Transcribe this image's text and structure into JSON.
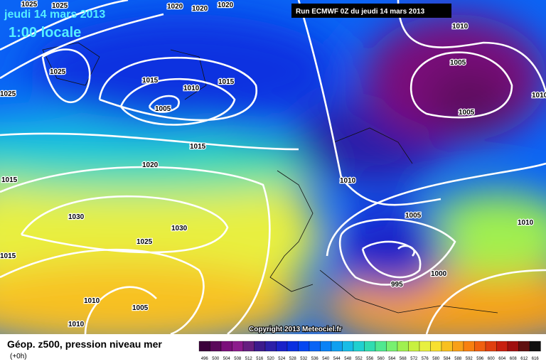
{
  "header": {
    "date": "jeudi 14 mars 2013",
    "time": "1:00 locale",
    "run": "Run ECMWF 0Z du jeudi 14 mars 2013"
  },
  "isobar_labels": [
    "1025",
    "1020",
    "1020",
    "1020",
    "1025",
    "1025",
    "1025",
    "1015",
    "1010",
    "1015",
    "1005",
    "1015",
    "1020",
    "1015",
    "1030",
    "1030",
    "1025",
    "1015",
    "1010",
    "1005",
    "1010",
    "1010",
    "1005",
    "1005",
    "1010",
    "1010",
    "1005",
    "1010",
    "1000",
    "995"
  ],
  "copyright": "Copyright 2013 Meteociel.fr",
  "legend": {
    "title": "Géop. z500, pression niveau mer",
    "step": "(+0h)",
    "scale": [
      "496",
      "500",
      "504",
      "508",
      "512",
      "516",
      "520",
      "524",
      "528",
      "532",
      "536",
      "540",
      "544",
      "548",
      "552",
      "556",
      "560",
      "564",
      "568",
      "572",
      "576",
      "580",
      "584",
      "588",
      "592",
      "596",
      "600",
      "604",
      "608",
      "612",
      "616"
    ],
    "colors": [
      "#3a003a",
      "#5a0a5a",
      "#7a0f7a",
      "#8c1c8c",
      "#661f80",
      "#3c1a8c",
      "#2c1fa8",
      "#1a22c8",
      "#0a30e0",
      "#0646f0",
      "#0a64f5",
      "#0a82f5",
      "#10a0f0",
      "#18bce6",
      "#20d0d0",
      "#30dcb0",
      "#50e890",
      "#78f070",
      "#a0f050",
      "#c8f040",
      "#e8f040",
      "#f8e030",
      "#f8c020",
      "#f8a018",
      "#f88010",
      "#f06010",
      "#e04010",
      "#c82010",
      "#a01010",
      "#601010",
      "#101010"
    ]
  }
}
